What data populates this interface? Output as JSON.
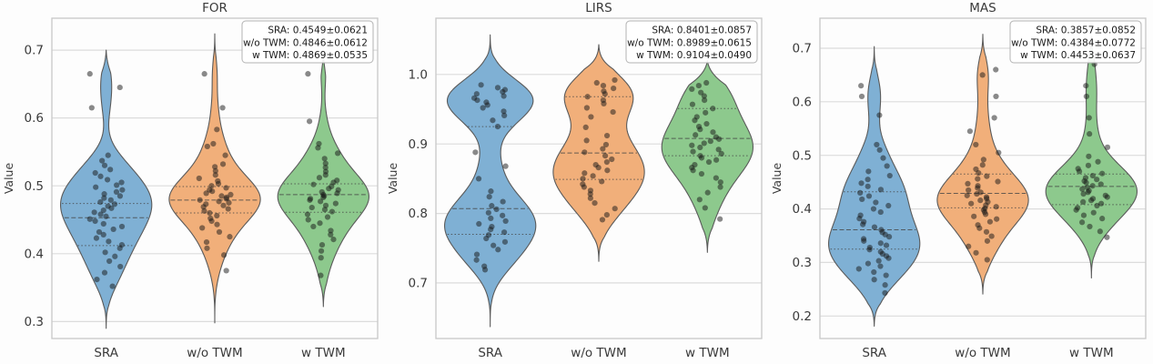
{
  "figure": {
    "background": "#fdfdfd"
  },
  "colors": {
    "blue": "#7FB0D4",
    "orange": "#F1AF7A",
    "green": "#8DC98D",
    "edge": "#5a5a5a",
    "dot": "#161616",
    "grid": "#dcdcdc",
    "frame": "#c8c8c8",
    "text": "#3a3a3a",
    "legend_border": "#b3b3b3",
    "legend_text": "#1a1a1a",
    "quartile_line": "#454545"
  },
  "chart_data": [
    {
      "type": "violin",
      "title": "FOR",
      "ylabel": "Value",
      "xlabel": "",
      "categories": [
        "SRA",
        "w/o TWM",
        "w TWM"
      ],
      "ylim": [
        0.275,
        0.747
      ],
      "ytick_values": [
        0.3,
        0.4,
        0.5,
        0.6,
        0.7
      ],
      "ytick_labels": [
        "0.3",
        "0.4",
        "0.5",
        "0.6",
        "0.7"
      ],
      "grid": true,
      "legend_position": "upper right",
      "legend": [
        "SRA: 0.4549±0.0621",
        "w/o TWM: 0.4846±0.0612",
        "w TWM: 0.4869±0.0535"
      ],
      "series": [
        {
          "name": "SRA",
          "color_key": "blue",
          "mean": 0.4549,
          "std": 0.0621,
          "quartiles": [
            0.412,
            0.453,
            0.474
          ],
          "cut_range": [
            0.29,
            0.7
          ],
          "bandwidth": 0.024,
          "points": [
            0.665,
            0.645,
            0.615,
            0.545,
            0.537,
            0.53,
            0.524,
            0.519,
            0.514,
            0.509,
            0.505,
            0.501,
            0.498,
            0.494,
            0.491,
            0.488,
            0.485,
            0.482,
            0.479,
            0.476,
            0.473,
            0.47,
            0.467,
            0.464,
            0.461,
            0.458,
            0.455,
            0.451,
            0.448,
            0.444,
            0.44,
            0.436,
            0.432,
            0.428,
            0.423,
            0.418,
            0.413,
            0.408,
            0.402,
            0.396,
            0.389,
            0.381,
            0.372,
            0.362,
            0.352
          ]
        },
        {
          "name": "w/o TWM",
          "color_key": "orange",
          "mean": 0.4846,
          "std": 0.0612,
          "quartiles": [
            0.46,
            0.479,
            0.499
          ],
          "cut_range": [
            0.298,
            0.724
          ],
          "bandwidth": 0.024,
          "points": [
            0.665,
            0.615,
            0.583,
            0.562,
            0.558,
            0.545,
            0.532,
            0.528,
            0.522,
            0.516,
            0.511,
            0.507,
            0.503,
            0.5,
            0.497,
            0.494,
            0.492,
            0.489,
            0.487,
            0.485,
            0.483,
            0.481,
            0.479,
            0.477,
            0.475,
            0.473,
            0.471,
            0.469,
            0.466,
            0.463,
            0.46,
            0.456,
            0.452,
            0.448,
            0.443,
            0.438,
            0.432,
            0.425,
            0.417,
            0.408,
            0.398,
            0.375
          ]
        },
        {
          "name": "w TWM",
          "color_key": "green",
          "mean": 0.4869,
          "std": 0.0535,
          "quartiles": [
            0.461,
            0.487,
            0.503
          ],
          "cut_range": [
            0.322,
            0.695
          ],
          "bandwidth": 0.024,
          "points": [
            0.665,
            0.595,
            0.562,
            0.556,
            0.548,
            0.54,
            0.533,
            0.527,
            0.521,
            0.516,
            0.512,
            0.508,
            0.505,
            0.502,
            0.499,
            0.496,
            0.494,
            0.491,
            0.489,
            0.487,
            0.485,
            0.483,
            0.481,
            0.479,
            0.477,
            0.474,
            0.471,
            0.468,
            0.465,
            0.462,
            0.458,
            0.454,
            0.45,
            0.445,
            0.44,
            0.434,
            0.428,
            0.421,
            0.413,
            0.404,
            0.394,
            0.368
          ]
        }
      ]
    },
    {
      "type": "violin",
      "title": "LIRS",
      "ylabel": "Value",
      "xlabel": "",
      "categories": [
        "SRA",
        "w/o TWM",
        "w TWM"
      ],
      "ylim": [
        0.62,
        1.081
      ],
      "ytick_values": [
        0.7,
        0.8,
        0.9,
        1.0
      ],
      "ytick_labels": [
        "0.7",
        "0.8",
        "0.9",
        "1.0"
      ],
      "grid": true,
      "legend_position": "upper right",
      "legend": [
        "SRA: 0.8401±0.0857",
        "w/o TWM: 0.8989±0.0615",
        "w TWM: 0.9104±0.0490"
      ],
      "series": [
        {
          "name": "SRA",
          "color_key": "blue",
          "mean": 0.8401,
          "std": 0.0857,
          "quartiles": [
            0.77,
            0.807,
            0.925
          ],
          "cut_range": [
            0.637,
            1.057
          ],
          "bandwidth": 0.025,
          "points": [
            0.985,
            0.981,
            0.978,
            0.975,
            0.972,
            0.969,
            0.966,
            0.963,
            0.96,
            0.956,
            0.952,
            0.947,
            0.941,
            0.934,
            0.925,
            0.888,
            0.868,
            0.85,
            0.832,
            0.824,
            0.817,
            0.811,
            0.806,
            0.801,
            0.797,
            0.793,
            0.789,
            0.785,
            0.781,
            0.777,
            0.773,
            0.769,
            0.764,
            0.759,
            0.754,
            0.748,
            0.741,
            0.733,
            0.724,
            0.719
          ]
        },
        {
          "name": "w/o TWM",
          "color_key": "orange",
          "mean": 0.8989,
          "std": 0.0615,
          "quartiles": [
            0.849,
            0.887,
            0.968
          ],
          "cut_range": [
            0.731,
            1.043
          ],
          "bandwidth": 0.025,
          "points": [
            0.992,
            0.988,
            0.984,
            0.98,
            0.976,
            0.972,
            0.968,
            0.963,
            0.958,
            0.952,
            0.946,
            0.939,
            0.924,
            0.912,
            0.905,
            0.899,
            0.893,
            0.888,
            0.883,
            0.878,
            0.874,
            0.87,
            0.866,
            0.862,
            0.858,
            0.854,
            0.85,
            0.846,
            0.842,
            0.838,
            0.833,
            0.828,
            0.822,
            0.815,
            0.807,
            0.798,
            0.791
          ]
        },
        {
          "name": "w TWM",
          "color_key": "green",
          "mean": 0.9104,
          "std": 0.049,
          "quartiles": [
            0.883,
            0.908,
            0.951
          ],
          "cut_range": [
            0.744,
            1.02
          ],
          "bandwidth": 0.025,
          "points": [
            0.988,
            0.984,
            0.979,
            0.974,
            0.969,
            0.963,
            0.957,
            0.951,
            0.945,
            0.939,
            0.934,
            0.929,
            0.925,
            0.921,
            0.917,
            0.913,
            0.91,
            0.907,
            0.904,
            0.901,
            0.898,
            0.895,
            0.892,
            0.889,
            0.886,
            0.883,
            0.88,
            0.877,
            0.874,
            0.87,
            0.866,
            0.862,
            0.857,
            0.851,
            0.845,
            0.838,
            0.83,
            0.82,
            0.808,
            0.792
          ]
        }
      ]
    },
    {
      "type": "violin",
      "title": "MAS",
      "ylabel": "Value",
      "xlabel": "",
      "categories": [
        "SRA",
        "w/o TWM",
        "w TWM"
      ],
      "ylim": [
        0.158,
        0.756
      ],
      "ytick_values": [
        0.2,
        0.3,
        0.4,
        0.5,
        0.6,
        0.7
      ],
      "ytick_labels": [
        "0.2",
        "0.3",
        "0.4",
        "0.5",
        "0.6",
        "0.7"
      ],
      "grid": true,
      "legend_position": "upper right",
      "legend": [
        "SRA: 0.3857±0.0852",
        "w/o TWM: 0.4384±0.0772",
        "w TWM: 0.4453±0.0637"
      ],
      "series": [
        {
          "name": "SRA",
          "color_key": "blue",
          "mean": 0.3857,
          "std": 0.0852,
          "quartiles": [
            0.325,
            0.361,
            0.432
          ],
          "cut_range": [
            0.181,
            0.703
          ],
          "bandwidth": 0.03,
          "points": [
            0.63,
            0.61,
            0.575,
            0.52,
            0.51,
            0.495,
            0.48,
            0.47,
            0.462,
            0.455,
            0.448,
            0.442,
            0.436,
            0.43,
            0.424,
            0.418,
            0.412,
            0.406,
            0.4,
            0.394,
            0.388,
            0.382,
            0.376,
            0.371,
            0.366,
            0.361,
            0.356,
            0.352,
            0.348,
            0.344,
            0.34,
            0.336,
            0.332,
            0.328,
            0.324,
            0.32,
            0.316,
            0.312,
            0.308,
            0.303,
            0.298,
            0.293,
            0.288,
            0.282,
            0.276,
            0.268,
            0.258,
            0.243
          ]
        },
        {
          "name": "w/o TWM",
          "color_key": "orange",
          "mean": 0.4384,
          "std": 0.0772,
          "quartiles": [
            0.402,
            0.429,
            0.465
          ],
          "cut_range": [
            0.241,
            0.726
          ],
          "bandwidth": 0.03,
          "points": [
            0.66,
            0.65,
            0.61,
            0.57,
            0.545,
            0.52,
            0.505,
            0.492,
            0.482,
            0.474,
            0.467,
            0.461,
            0.456,
            0.451,
            0.447,
            0.443,
            0.439,
            0.435,
            0.431,
            0.428,
            0.425,
            0.422,
            0.419,
            0.416,
            0.413,
            0.41,
            0.407,
            0.404,
            0.401,
            0.398,
            0.394,
            0.39,
            0.386,
            0.381,
            0.376,
            0.37,
            0.364,
            0.357,
            0.349,
            0.34,
            0.33,
            0.318,
            0.305
          ]
        },
        {
          "name": "w TWM",
          "color_key": "green",
          "mean": 0.4453,
          "std": 0.0637,
          "quartiles": [
            0.408,
            0.442,
            0.465
          ],
          "cut_range": [
            0.271,
            0.722
          ],
          "bandwidth": 0.03,
          "points": [
            0.67,
            0.63,
            0.61,
            0.57,
            0.54,
            0.515,
            0.498,
            0.488,
            0.481,
            0.475,
            0.47,
            0.466,
            0.462,
            0.458,
            0.455,
            0.452,
            0.449,
            0.446,
            0.443,
            0.44,
            0.437,
            0.434,
            0.431,
            0.428,
            0.425,
            0.422,
            0.419,
            0.416,
            0.413,
            0.41,
            0.406,
            0.402,
            0.398,
            0.393,
            0.388,
            0.382,
            0.375,
            0.367,
            0.358,
            0.347
          ]
        }
      ]
    }
  ]
}
